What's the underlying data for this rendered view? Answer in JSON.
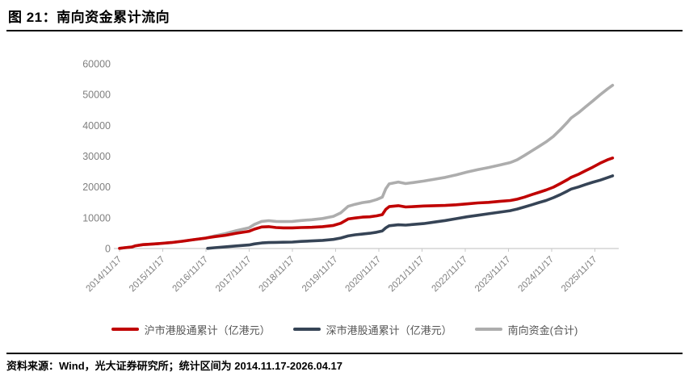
{
  "header": {
    "title": "图 21：南向资金累计流向"
  },
  "footer": {
    "text": "资料来源：Wind，光大证券研究所；统计区间为 2014.11.17-2026.04.17"
  },
  "colors": {
    "red": "#C00000",
    "navy": "#364456",
    "gray": "#ADADAD",
    "axis_text": "#808080",
    "axis_line": "#C9C9C9"
  },
  "chart_data": {
    "type": "line",
    "title": "南向资金累计流向",
    "xlabel": "",
    "ylabel": "",
    "grid": false,
    "legend_position": "bottom",
    "ylim": [
      0,
      60000
    ],
    "yticks": [
      0,
      10000,
      20000,
      30000,
      40000,
      50000,
      60000
    ],
    "xtick_labels": [
      "2014/11/17",
      "2015/11/17",
      "2016/11/17",
      "2017/11/17",
      "2018/11/17",
      "2019/11/17",
      "2020/11/17",
      "2021/11/17",
      "2022/11/17",
      "2023/11/17",
      "2024/11/17",
      "2025/11/17"
    ],
    "xtick_t": [
      2014.88,
      2015.88,
      2016.88,
      2017.88,
      2018.88,
      2019.88,
      2020.88,
      2021.88,
      2022.88,
      2023.88,
      2024.88,
      2025.88
    ],
    "x": [
      2014.88,
      2015.0,
      2015.17,
      2015.25,
      2015.42,
      2015.58,
      2015.75,
      2015.88,
      2016.08,
      2016.33,
      2016.58,
      2016.88,
      2016.92,
      2017.08,
      2017.33,
      2017.58,
      2017.88,
      2018.0,
      2018.17,
      2018.33,
      2018.5,
      2018.67,
      2018.88,
      2019.08,
      2019.33,
      2019.58,
      2019.83,
      2020.0,
      2020.17,
      2020.33,
      2020.5,
      2020.67,
      2020.83,
      2020.96,
      2021.04,
      2021.12,
      2021.33,
      2021.5,
      2021.67,
      2021.92,
      2022.17,
      2022.42,
      2022.67,
      2022.92,
      2023.17,
      2023.42,
      2023.67,
      2023.92,
      2024.08,
      2024.25,
      2024.42,
      2024.58,
      2024.75,
      2024.92,
      2025.08,
      2025.25,
      2025.33,
      2025.5,
      2025.67,
      2025.83,
      2026.0,
      2026.17,
      2026.29
    ],
    "series": [
      {
        "name": "沪市港股通累计（亿港元）",
        "color": "#C00000",
        "values": [
          50,
          250,
          500,
          900,
          1250,
          1400,
          1550,
          1700,
          1950,
          2350,
          2850,
          3400,
          3500,
          3850,
          4300,
          4950,
          5600,
          6300,
          7000,
          7100,
          6800,
          6700,
          6700,
          6800,
          6900,
          7100,
          7500,
          8200,
          9600,
          9900,
          10200,
          10300,
          10600,
          11000,
          12700,
          13600,
          13900,
          13500,
          13600,
          13800,
          13900,
          14000,
          14200,
          14500,
          14800,
          15000,
          15300,
          15600,
          16000,
          16700,
          17500,
          18200,
          19000,
          19900,
          21100,
          22400,
          23100,
          24100,
          25300,
          26400,
          27700,
          28800,
          29400
        ]
      },
      {
        "name": "深市港股通累计（亿港元）",
        "color": "#364456",
        "values": [
          null,
          null,
          null,
          null,
          null,
          null,
          null,
          null,
          null,
          null,
          null,
          null,
          50,
          250,
          550,
          850,
          1150,
          1500,
          1800,
          1950,
          2000,
          2050,
          2100,
          2300,
          2450,
          2650,
          2950,
          3400,
          4100,
          4450,
          4700,
          4950,
          5300,
          5700,
          6700,
          7400,
          7700,
          7600,
          7800,
          8100,
          8600,
          9100,
          9700,
          10300,
          10800,
          11300,
          11800,
          12300,
          12800,
          13500,
          14200,
          14900,
          15600,
          16500,
          17500,
          18700,
          19300,
          20000,
          20800,
          21500,
          22200,
          23000,
          23600
        ]
      },
      {
        "name": "南向资金(合计)",
        "color": "#ADADAD",
        "values": [
          50,
          250,
          500,
          900,
          1250,
          1400,
          1550,
          1700,
          1950,
          2350,
          2850,
          3400,
          3550,
          4100,
          4850,
          5800,
          6750,
          7800,
          8800,
          9050,
          8800,
          8750,
          8800,
          9100,
          9350,
          9750,
          10450,
          11600,
          13700,
          14350,
          14900,
          15250,
          15900,
          16700,
          19400,
          21000,
          21600,
          21100,
          21400,
          21900,
          22500,
          23100,
          23900,
          24800,
          25600,
          26300,
          27100,
          27900,
          28800,
          30200,
          31700,
          33100,
          34600,
          36400,
          38600,
          41100,
          42400,
          44100,
          46100,
          47900,
          49900,
          51800,
          53000
        ]
      }
    ]
  }
}
